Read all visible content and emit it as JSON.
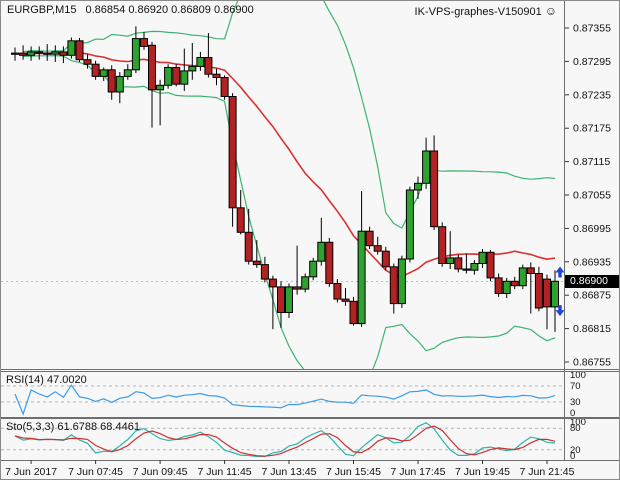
{
  "header": {
    "symbol_period": "EURGBP,M15",
    "ohlc_text": "0.86854 0.86920 0.86809 0.86900",
    "watermark": "IK-VPS-graphes-V150901",
    "watermark_icon": "☺"
  },
  "panes": {
    "rsi_label": "RSI(14) 47.0020",
    "sto_label": "Sto(5,3,3) 61.6788 68.4461"
  },
  "price_axis": {
    "ticks": [
      "0.87355",
      "0.87295",
      "0.87235",
      "0.87175",
      "0.87115",
      "0.87055",
      "0.86995",
      "0.86935",
      "0.86875",
      "0.86815",
      "0.86755"
    ],
    "current": "0.86900"
  },
  "rsi_axis": [
    "100",
    "70",
    "30",
    "0"
  ],
  "sto_axis": [
    "100",
    "80",
    "20",
    "0"
  ],
  "chart_data": {
    "type": "candlestick",
    "title": "EURGBP,M15  0.86854 0.86920 0.86809 0.86900",
    "symbol": "EURGBP",
    "timeframe": "M15",
    "last_ohlc": {
      "open": 0.86854,
      "high": 0.8692,
      "low": 0.86809,
      "close": 0.869
    },
    "ylim": [
      0.86755,
      0.87355
    ],
    "current_price": 0.869,
    "grid": "off",
    "time_ticks": [
      {
        "index": 2,
        "label": "7 Jun 2017"
      },
      {
        "index": 10,
        "label": "7 Jun 07:45"
      },
      {
        "index": 18,
        "label": "7 Jun 09:45"
      },
      {
        "index": 26,
        "label": "7 Jun 11:45"
      },
      {
        "index": 34,
        "label": "7 Jun 13:45"
      },
      {
        "index": 42,
        "label": "7 Jun 15:45"
      },
      {
        "index": 50,
        "label": "7 Jun 17:45"
      },
      {
        "index": 58,
        "label": "7 Jun 19:45"
      },
      {
        "index": 66,
        "label": "7 Jun 21:45"
      }
    ],
    "candles": [
      [
        0.87308,
        0.8732,
        0.87296,
        0.8731
      ],
      [
        0.8731,
        0.87324,
        0.87298,
        0.87306
      ],
      [
        0.87306,
        0.87322,
        0.87296,
        0.87312
      ],
      [
        0.87312,
        0.87322,
        0.87298,
        0.8731
      ],
      [
        0.8731,
        0.87326,
        0.87296,
        0.87308
      ],
      [
        0.87308,
        0.87324,
        0.87294,
        0.87312
      ],
      [
        0.87312,
        0.87322,
        0.87292,
        0.87306
      ],
      [
        0.87306,
        0.87338,
        0.873,
        0.87332
      ],
      [
        0.87332,
        0.87337,
        0.87294,
        0.87298
      ],
      [
        0.87298,
        0.87308,
        0.87282,
        0.8729
      ],
      [
        0.8729,
        0.87296,
        0.87262,
        0.87268
      ],
      [
        0.87268,
        0.87284,
        0.8726,
        0.8728
      ],
      [
        0.8728,
        0.87288,
        0.87226,
        0.8724
      ],
      [
        0.8724,
        0.87276,
        0.8722,
        0.87268
      ],
      [
        0.87268,
        0.8729,
        0.87262,
        0.8728
      ],
      [
        0.8728,
        0.87358,
        0.87274,
        0.87336
      ],
      [
        0.87336,
        0.87348,
        0.87316,
        0.87322
      ],
      [
        0.87324,
        0.8733,
        0.87176,
        0.87244
      ],
      [
        0.87244,
        0.87262,
        0.8718,
        0.87252
      ],
      [
        0.87252,
        0.8729,
        0.87246,
        0.87284
      ],
      [
        0.87284,
        0.8729,
        0.8725,
        0.87254
      ],
      [
        0.87254,
        0.87318,
        0.87242,
        0.87278
      ],
      [
        0.87278,
        0.87328,
        0.87262,
        0.87286
      ],
      [
        0.87286,
        0.87312,
        0.87278,
        0.87302
      ],
      [
        0.87302,
        0.87346,
        0.87266,
        0.87272
      ],
      [
        0.87272,
        0.87282,
        0.87252,
        0.87266
      ],
      [
        0.87266,
        0.8727,
        0.87226,
        0.87232
      ],
      [
        0.87232,
        0.87238,
        0.86998,
        0.87032
      ],
      [
        0.87032,
        0.87064,
        0.86984,
        0.86988
      ],
      [
        0.86988,
        0.8703,
        0.8693,
        0.86936
      ],
      [
        0.86936,
        0.86974,
        0.86924,
        0.8693
      ],
      [
        0.8693,
        0.86944,
        0.86898,
        0.86904
      ],
      [
        0.86904,
        0.8691,
        0.86814,
        0.8689
      ],
      [
        0.8689,
        0.869,
        0.86816,
        0.86844
      ],
      [
        0.86844,
        0.86896,
        0.86834,
        0.8689
      ],
      [
        0.8689,
        0.86964,
        0.86876,
        0.86886
      ],
      [
        0.86886,
        0.86914,
        0.8688,
        0.86908
      ],
      [
        0.86908,
        0.86942,
        0.86902,
        0.86936
      ],
      [
        0.86936,
        0.87014,
        0.86928,
        0.8697
      ],
      [
        0.8697,
        0.86978,
        0.8689,
        0.86896
      ],
      [
        0.86896,
        0.86904,
        0.86862,
        0.86868
      ],
      [
        0.86868,
        0.86888,
        0.86856,
        0.86864
      ],
      [
        0.86864,
        0.86872,
        0.8682,
        0.86824
      ],
      [
        0.86824,
        0.87062,
        0.86818,
        0.8699
      ],
      [
        0.8699,
        0.86998,
        0.86958,
        0.86964
      ],
      [
        0.86964,
        0.8698,
        0.86948,
        0.86954
      ],
      [
        0.86954,
        0.86962,
        0.8692,
        0.86926
      ],
      [
        0.86926,
        0.86932,
        0.86842,
        0.8686
      ],
      [
        0.8686,
        0.86946,
        0.86852,
        0.8694
      ],
      [
        0.8694,
        0.8707,
        0.86934,
        0.87064
      ],
      [
        0.87064,
        0.87088,
        0.87048,
        0.87076
      ],
      [
        0.87076,
        0.87158,
        0.87066,
        0.87134
      ],
      [
        0.87134,
        0.87162,
        0.86992,
        0.86998
      ],
      [
        0.86998,
        0.87006,
        0.86926,
        0.86932
      ],
      [
        0.86932,
        0.8699,
        0.86922,
        0.86942
      ],
      [
        0.86942,
        0.86948,
        0.86916,
        0.86922
      ],
      [
        0.86922,
        0.8695,
        0.86914,
        0.8692
      ],
      [
        0.8692,
        0.86938,
        0.86912,
        0.86932
      ],
      [
        0.86932,
        0.86958,
        0.86924,
        0.86952
      ],
      [
        0.86952,
        0.86956,
        0.869,
        0.86906
      ],
      [
        0.86906,
        0.86914,
        0.86872,
        0.86878
      ],
      [
        0.86878,
        0.86906,
        0.8687,
        0.869
      ],
      [
        0.869,
        0.86908,
        0.86886,
        0.86892
      ],
      [
        0.86892,
        0.8693,
        0.86886,
        0.86924
      ],
      [
        0.86924,
        0.86934,
        0.86842,
        0.86914
      ],
      [
        0.86914,
        0.86926,
        0.86846,
        0.86852
      ],
      [
        0.86904,
        0.86912,
        0.86814,
        0.86854
      ],
      [
        0.86854,
        0.8692,
        0.86809,
        0.869
      ]
    ],
    "indicators": {
      "bollinger": {
        "period": 20,
        "deviation": 2,
        "band_color": "#3cb371",
        "mid_color": "#dc3030"
      },
      "rsi": {
        "period": 14,
        "value": 47.002,
        "levels": [
          70,
          30
        ],
        "color": "#3d9be9"
      },
      "stochastic": {
        "k": 5,
        "d": 3,
        "slowing": 3,
        "main": 61.6788,
        "signal": 68.4461,
        "levels": [
          80,
          20
        ],
        "main_color": "#2ab5ad",
        "signal_color": "#d03030"
      }
    },
    "markers": [
      {
        "type": "arrow-up",
        "index": 67,
        "price": 0.86914,
        "color": "#2244dd"
      },
      {
        "type": "arrow-down",
        "index": 67,
        "price": 0.8685,
        "color": "#2244dd"
      }
    ],
    "colors": {
      "bull": "#2fa12f",
      "bear": "#b22222",
      "outline": "#000000",
      "background": "#f7f7f7",
      "dashed_level": "#b5b5b5"
    }
  }
}
